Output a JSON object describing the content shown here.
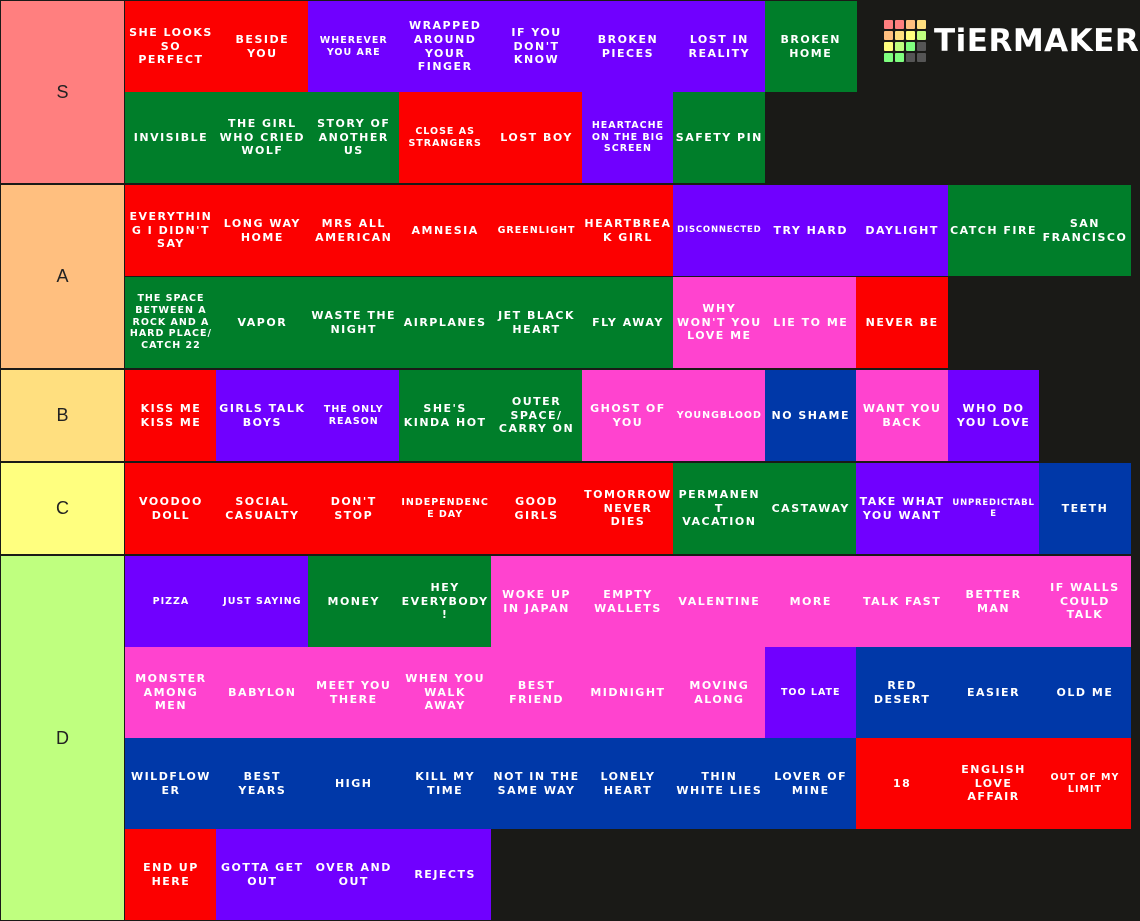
{
  "brand": {
    "name": "TiERMAKER",
    "grid_colors": [
      "#ff7f7f",
      "#ff7f7f",
      "#ffbf7f",
      "#ffdf7f",
      "#ffbf7f",
      "#ffdf7f",
      "#ffff7f",
      "#bfff7f",
      "#ffff7f",
      "#bfff7f",
      "#7fff7f",
      "#555555",
      "#7fff7f",
      "#7fff7f",
      "#555555",
      "#555555"
    ]
  },
  "colors": {
    "red": "#fc0000",
    "purple": "#7000ff",
    "green": "#007e2a",
    "pink": "#ff43cf",
    "blue": "#0038a8"
  },
  "tiers": [
    {
      "label": "S",
      "color": "#ff7f7f",
      "items": [
        {
          "text": "SHE LOOKS SO PERFECT",
          "color": "red"
        },
        {
          "text": "BESIDE YOU",
          "color": "red"
        },
        {
          "text": "WHEREVER YOU ARE",
          "color": "purple",
          "size": "sm"
        },
        {
          "text": "WRAPPED AROUND YOUR FINGER",
          "color": "purple"
        },
        {
          "text": "IF YOU DON'T KNOW",
          "color": "purple"
        },
        {
          "text": "BROKEN PIECES",
          "color": "purple"
        },
        {
          "text": "LOST IN REALITY",
          "color": "purple"
        },
        {
          "text": "BROKEN HOME",
          "color": "green"
        },
        {
          "text": "INVISIBLE",
          "color": "green"
        },
        {
          "text": "THE GIRL WHO CRIED WOLF",
          "color": "green"
        },
        {
          "text": "STORY OF ANOTHER US",
          "color": "green"
        },
        {
          "text": "CLOSE AS STRANGERS",
          "color": "red",
          "size": "sm"
        },
        {
          "text": "LOST BOY",
          "color": "red"
        },
        {
          "text": "HEARTACHE ON THE BIG SCREEN",
          "color": "purple",
          "size": "sm"
        },
        {
          "text": "SAFETY PIN",
          "color": "green"
        }
      ]
    },
    {
      "label": "A",
      "color": "#ffbf7f",
      "items": [
        {
          "text": "EVERYTHING I DIDN'T SAY",
          "color": "red"
        },
        {
          "text": "LONG WAY HOME",
          "color": "red"
        },
        {
          "text": "MRS ALL AMERICAN",
          "color": "red"
        },
        {
          "text": "AMNESIA",
          "color": "red"
        },
        {
          "text": "GREENLIGHT",
          "color": "red",
          "size": "sm"
        },
        {
          "text": "HEARTBREAK GIRL",
          "color": "red"
        },
        {
          "text": "DISCONNECTED",
          "color": "purple",
          "size": "xs"
        },
        {
          "text": "TRY HARD",
          "color": "purple"
        },
        {
          "text": "DAYLIGHT",
          "color": "purple"
        },
        {
          "text": "CATCH FIRE",
          "color": "green"
        },
        {
          "text": "SAN FRANCISCO",
          "color": "green"
        },
        {
          "text": "THE SPACE BETWEEN A ROCK AND A HARD PLACE/ CATCH 22",
          "color": "green",
          "size": "sm"
        },
        {
          "text": "VAPOR",
          "color": "green"
        },
        {
          "text": "WASTE THE NIGHT",
          "color": "green"
        },
        {
          "text": "AIRPLANES",
          "color": "green"
        },
        {
          "text": "JET BLACK HEART",
          "color": "green"
        },
        {
          "text": "FLY AWAY",
          "color": "green"
        },
        {
          "text": "WHY WON'T YOU LOVE ME",
          "color": "pink"
        },
        {
          "text": "LIE TO ME",
          "color": "pink"
        },
        {
          "text": "NEVER BE",
          "color": "red"
        }
      ]
    },
    {
      "label": "B",
      "color": "#ffdf7f",
      "items": [
        {
          "text": "KISS ME KISS ME",
          "color": "red"
        },
        {
          "text": "GIRLS TALK BOYS",
          "color": "purple"
        },
        {
          "text": "THE ONLY REASON",
          "color": "purple",
          "size": "sm"
        },
        {
          "text": "SHE'S KINDA HOT",
          "color": "green"
        },
        {
          "text": "OUTER SPACE/ CARRY ON",
          "color": "green"
        },
        {
          "text": "GHOST OF YOU",
          "color": "pink"
        },
        {
          "text": "YOUNGBLOOD",
          "color": "pink",
          "size": "sm"
        },
        {
          "text": "NO SHAME",
          "color": "blue"
        },
        {
          "text": "WANT YOU BACK",
          "color": "pink"
        },
        {
          "text": "WHO DO YOU LOVE",
          "color": "purple"
        }
      ]
    },
    {
      "label": "C",
      "color": "#ffff7f",
      "items": [
        {
          "text": "VOODOO DOLL",
          "color": "red"
        },
        {
          "text": "SOCIAL CASUALTY",
          "color": "red"
        },
        {
          "text": "DON'T STOP",
          "color": "red"
        },
        {
          "text": "INDEPENDENCE DAY",
          "color": "red",
          "size": "sm"
        },
        {
          "text": "GOOD GIRLS",
          "color": "red"
        },
        {
          "text": "TOMORROW NEVER DIES",
          "color": "red"
        },
        {
          "text": "PERMANENT VACATION",
          "color": "green"
        },
        {
          "text": "CASTAWAY",
          "color": "green"
        },
        {
          "text": "TAKE WHAT YOU WANT",
          "color": "purple"
        },
        {
          "text": "UNPREDICTABLE",
          "color": "purple",
          "size": "xs"
        },
        {
          "text": "TEETH",
          "color": "blue"
        }
      ]
    },
    {
      "label": "D",
      "color": "#bfff7f",
      "items": [
        {
          "text": "PIZZA",
          "color": "purple",
          "size": "sm"
        },
        {
          "text": "JUST SAYING",
          "color": "purple",
          "size": "sm"
        },
        {
          "text": "MONEY",
          "color": "green"
        },
        {
          "text": "HEY EVERYBODY!",
          "color": "green"
        },
        {
          "text": "WOKE UP IN JAPAN",
          "color": "pink"
        },
        {
          "text": "EMPTY WALLETS",
          "color": "pink"
        },
        {
          "text": "VALENTINE",
          "color": "pink"
        },
        {
          "text": "MORE",
          "color": "pink"
        },
        {
          "text": "TALK FAST",
          "color": "pink"
        },
        {
          "text": "BETTER MAN",
          "color": "pink"
        },
        {
          "text": "IF WALLS COULD TALK",
          "color": "pink"
        },
        {
          "text": "MONSTER AMONG MEN",
          "color": "pink"
        },
        {
          "text": "BABYLON",
          "color": "pink"
        },
        {
          "text": "MEET YOU THERE",
          "color": "pink"
        },
        {
          "text": "WHEN YOU WALK AWAY",
          "color": "pink"
        },
        {
          "text": "BEST FRIEND",
          "color": "pink"
        },
        {
          "text": "MIDNIGHT",
          "color": "pink"
        },
        {
          "text": "MOVING ALONG",
          "color": "pink"
        },
        {
          "text": "TOO LATE",
          "color": "purple",
          "size": "sm"
        },
        {
          "text": "RED DESERT",
          "color": "blue"
        },
        {
          "text": "EASIER",
          "color": "blue"
        },
        {
          "text": "OLD ME",
          "color": "blue"
        },
        {
          "text": "WILDFLOWER",
          "color": "blue"
        },
        {
          "text": "BEST YEARS",
          "color": "blue"
        },
        {
          "text": "HIGH",
          "color": "blue"
        },
        {
          "text": "KILL MY TIME",
          "color": "blue"
        },
        {
          "text": "NOT IN THE SAME WAY",
          "color": "blue"
        },
        {
          "text": "LONELY HEART",
          "color": "blue"
        },
        {
          "text": "THIN WHITE LIES",
          "color": "blue"
        },
        {
          "text": "LOVER OF MINE",
          "color": "blue"
        },
        {
          "text": "18",
          "color": "red"
        },
        {
          "text": "ENGLISH LOVE AFFAIR",
          "color": "red"
        },
        {
          "text": "OUT OF MY LIMIT",
          "color": "red",
          "size": "sm"
        },
        {
          "text": "END UP HERE",
          "color": "red"
        },
        {
          "text": "GOTTA GET OUT",
          "color": "purple"
        },
        {
          "text": "OVER AND OUT",
          "color": "purple"
        },
        {
          "text": "REJECTS",
          "color": "purple"
        }
      ]
    }
  ]
}
